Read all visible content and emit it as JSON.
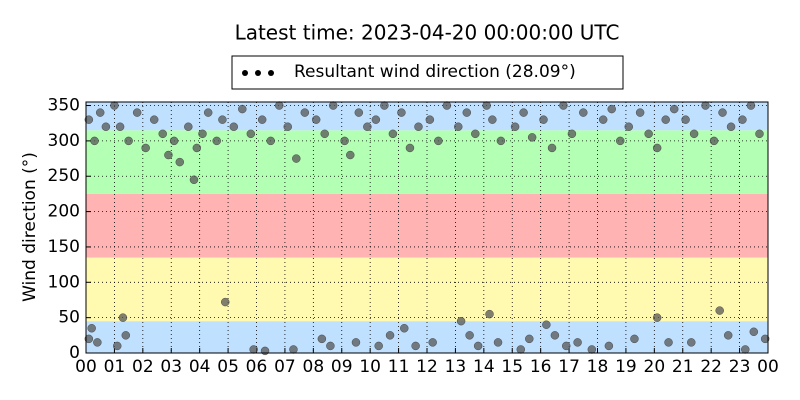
{
  "chart_data": {
    "type": "scatter",
    "title": "Latest time: 2023-04-20 00:00:00 UTC",
    "y_label": "Wind direction (°)",
    "series": [
      {
        "name": "Resultant wind direction (28.09°)",
        "color": "#555555",
        "x": [
          0.1,
          0.3,
          0.5,
          0.7,
          0.2,
          0.4,
          0.1,
          1.0,
          1.2,
          1.5,
          1.8,
          1.3,
          1.1,
          1.4,
          2.1,
          2.4,
          2.7,
          2.9,
          3.1,
          3.3,
          3.6,
          3.9,
          3.8,
          4.1,
          4.3,
          4.6,
          4.9,
          4.8,
          5.2,
          5.5,
          5.8,
          5.9,
          6.2,
          6.5,
          6.8,
          6.3,
          7.1,
          7.4,
          7.7,
          7.3,
          8.1,
          8.4,
          8.7,
          8.3,
          8.6,
          9.1,
          9.3,
          9.6,
          9.9,
          9.5,
          10.2,
          10.5,
          10.8,
          10.3,
          10.7,
          11.1,
          11.4,
          11.7,
          11.2,
          11.6,
          12.1,
          12.4,
          12.7,
          12.2,
          13.1,
          13.4,
          13.7,
          13.2,
          13.5,
          13.8,
          14.1,
          14.3,
          14.6,
          14.2,
          14.5,
          15.1,
          15.4,
          15.7,
          15.3,
          15.6,
          16.1,
          16.4,
          16.8,
          16.2,
          16.5,
          16.9,
          17.1,
          17.5,
          17.3,
          17.8,
          18.2,
          18.5,
          18.8,
          18.4,
          19.1,
          19.5,
          19.8,
          19.3,
          20.1,
          20.4,
          20.7,
          20.1,
          20.5,
          21.1,
          21.4,
          21.8,
          21.3,
          22.1,
          22.4,
          22.7,
          22.3,
          22.6,
          23.1,
          23.4,
          23.7,
          23.9,
          23.5,
          23.2
        ],
        "values": [
          330,
          300,
          340,
          320,
          35,
          15,
          20,
          350,
          320,
          300,
          340,
          50,
          10,
          25,
          290,
          330,
          310,
          280,
          300,
          270,
          320,
          290,
          245,
          310,
          340,
          300,
          72,
          330,
          320,
          345,
          310,
          5,
          330,
          300,
          350,
          3,
          320,
          275,
          340,
          5,
          330,
          310,
          350,
          20,
          10,
          300,
          280,
          340,
          320,
          15,
          330,
          350,
          310,
          10,
          25,
          340,
          290,
          320,
          35,
          10,
          330,
          300,
          350,
          15,
          320,
          340,
          310,
          45,
          25,
          10,
          350,
          330,
          300,
          55,
          15,
          320,
          340,
          305,
          5,
          20,
          330,
          290,
          350,
          40,
          25,
          10,
          310,
          340,
          15,
          5,
          330,
          345,
          300,
          10,
          320,
          340,
          310,
          20,
          290,
          330,
          345,
          50,
          15,
          330,
          310,
          350,
          15,
          300,
          340,
          320,
          60,
          25,
          330,
          350,
          310,
          20,
          30,
          5
        ]
      }
    ],
    "xlim": [
      0,
      24
    ],
    "ylim": [
      0,
      355
    ],
    "xticks": [
      {
        "value": 0,
        "label": "00"
      },
      {
        "value": 1,
        "label": "01"
      },
      {
        "value": 2,
        "label": "02"
      },
      {
        "value": 3,
        "label": "03"
      },
      {
        "value": 4,
        "label": "04"
      },
      {
        "value": 5,
        "label": "05"
      },
      {
        "value": 6,
        "label": "06"
      },
      {
        "value": 7,
        "label": "07"
      },
      {
        "value": 8,
        "label": "08"
      },
      {
        "value": 9,
        "label": "09"
      },
      {
        "value": 10,
        "label": "10"
      },
      {
        "value": 11,
        "label": "11"
      },
      {
        "value": 12,
        "label": "12"
      },
      {
        "value": 13,
        "label": "13"
      },
      {
        "value": 14,
        "label": "14"
      },
      {
        "value": 15,
        "label": "15"
      },
      {
        "value": 16,
        "label": "16"
      },
      {
        "value": 17,
        "label": "17"
      },
      {
        "value": 18,
        "label": "18"
      },
      {
        "value": 19,
        "label": "19"
      },
      {
        "value": 20,
        "label": "20"
      },
      {
        "value": 21,
        "label": "21"
      },
      {
        "value": 22,
        "label": "22"
      },
      {
        "value": 23,
        "label": "23"
      },
      {
        "value": 24,
        "label": "00"
      }
    ],
    "yticks": [
      0,
      50,
      100,
      150,
      200,
      250,
      300,
      350
    ],
    "grid": true,
    "bands": [
      {
        "range": [
          0,
          45
        ],
        "color": "#bfe0ff"
      },
      {
        "range": [
          45,
          135
        ],
        "color": "#fffab0"
      },
      {
        "range": [
          135,
          225
        ],
        "color": "#ffb3b3"
      },
      {
        "range": [
          225,
          315
        ],
        "color": "#b3ffb3"
      },
      {
        "range": [
          315,
          355
        ],
        "color": "#bfe0ff"
      }
    ]
  }
}
